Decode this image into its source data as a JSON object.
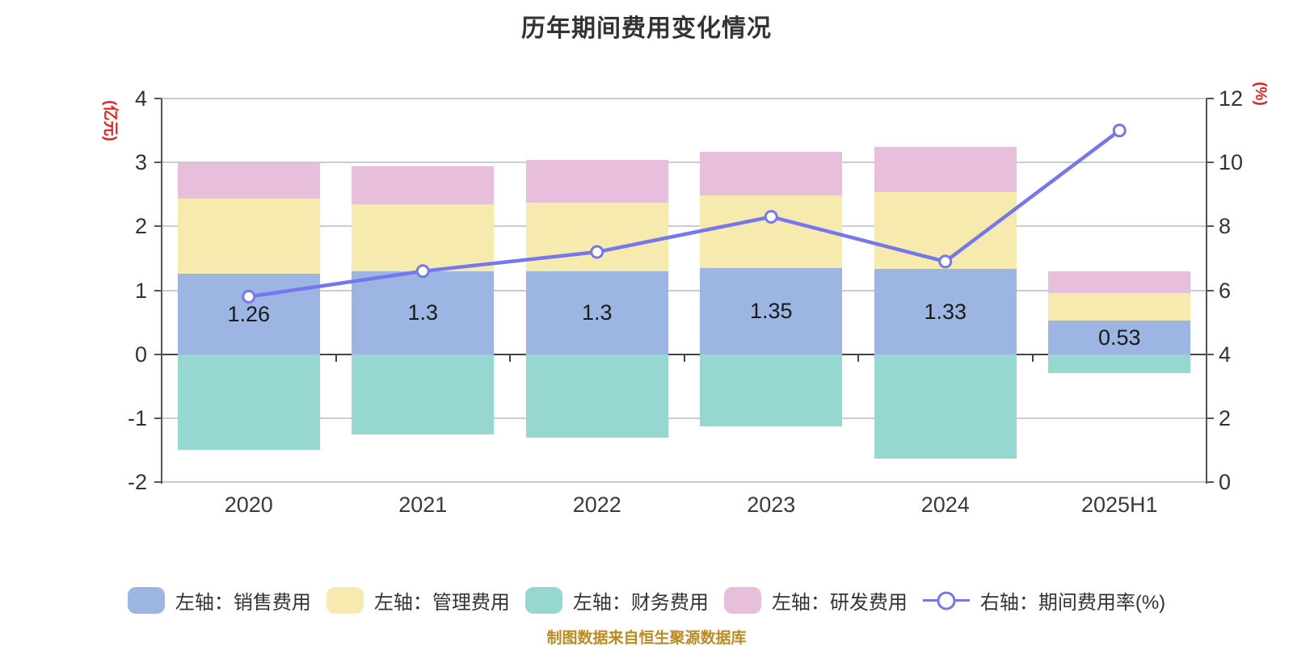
{
  "title": {
    "text": "历年期间费用变化情况"
  },
  "caption": {
    "text": "制图数据来自恒生聚源数据库",
    "color": "#bd8a20"
  },
  "chart_data": {
    "type": "bar",
    "subtype": "stacked-bars-with-right-axis-line",
    "title": "历年期间费用变化情况",
    "categories": [
      "2020",
      "2021",
      "2022",
      "2023",
      "2024",
      "2025H1"
    ],
    "series": [
      {
        "name": "左轴：销售费用",
        "type": "bar",
        "stack": "total",
        "axis": "left",
        "color": "#9cb5e2",
        "values": [
          1.26,
          1.3,
          1.3,
          1.35,
          1.33,
          0.53
        ],
        "data_labels": [
          "1.26",
          "1.3",
          "1.3",
          "1.35",
          "1.33",
          "0.53"
        ]
      },
      {
        "name": "左轴：管理费用",
        "type": "bar",
        "stack": "total",
        "axis": "left",
        "color": "#f7eaae",
        "values": [
          1.17,
          1.04,
          1.07,
          1.13,
          1.21,
          0.43
        ]
      },
      {
        "name": "左轴：财务费用",
        "type": "bar",
        "stack": "total",
        "axis": "left",
        "color": "#97d7d2",
        "values": [
          -1.49,
          -1.25,
          -1.31,
          -1.13,
          -1.64,
          -0.3
        ]
      },
      {
        "name": "左轴：研发费用",
        "type": "bar",
        "stack": "total",
        "axis": "left",
        "color": "#e8bedd",
        "values": [
          0.57,
          0.6,
          0.67,
          0.69,
          0.7,
          0.34
        ]
      },
      {
        "name": "右轴：期间费用率(%)",
        "type": "line",
        "axis": "right",
        "color": "#7577ee",
        "marker": "circle",
        "values": [
          5.8,
          6.6,
          7.2,
          8.3,
          6.9,
          11.0
        ]
      }
    ],
    "left_axis": {
      "name": "(亿元)",
      "name_color": "#ed1c1c",
      "min": -2,
      "max": 4,
      "tick_values": [
        4,
        3,
        2,
        1,
        0,
        -1,
        -2
      ]
    },
    "right_axis": {
      "name": "(%)",
      "name_color": "#ed1c1c",
      "min": 0,
      "max": 12,
      "tick_values": [
        12,
        10,
        8,
        6,
        4,
        2,
        0
      ]
    },
    "grid": true,
    "legend_position": "bottom"
  }
}
